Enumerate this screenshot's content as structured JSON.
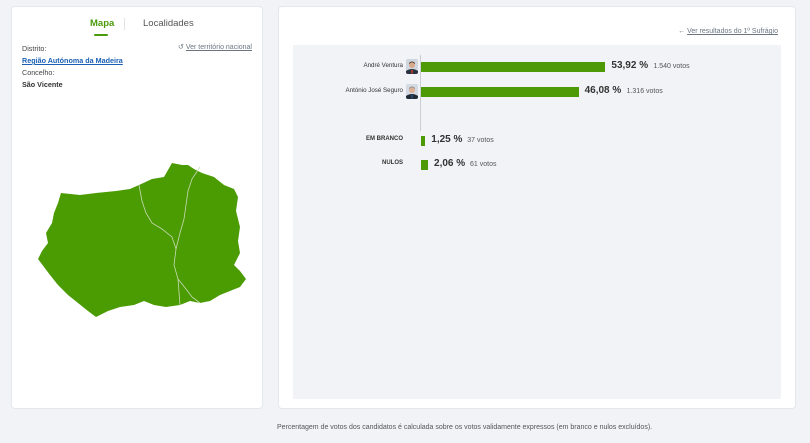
{
  "tabs": {
    "map": "Mapa",
    "localities": "Localidades"
  },
  "location": {
    "district_label": "Distrito:",
    "district_value": "Região Autónoma da Madeira",
    "council_label": "Concelho:",
    "council_value": "São Vicente",
    "national_link": "Ver território nacional"
  },
  "results": {
    "previous_link": "Ver resultados do 1º Sufrágio",
    "candidates": [
      {
        "name": "André Ventura",
        "percent": 53.92,
        "percent_label": "53,92 %",
        "votes_label": "1.540 votos"
      },
      {
        "name": "António José Seguro",
        "percent": 46.08,
        "percent_label": "46,08 %",
        "votes_label": "1.316 votos"
      }
    ],
    "others": [
      {
        "name": "EM BRANCO",
        "percent": 1.25,
        "percent_label": "1,25 %",
        "votes_label": "37 votos"
      },
      {
        "name": "NULOS",
        "percent": 2.06,
        "percent_label": "2,06 %",
        "votes_label": "61 votos"
      }
    ]
  },
  "footnote": "Percentagem de votos dos candidatos é calculada sobre os votos validamente expressos (em branco e nulos excluídos).",
  "colors": {
    "accent": "#4a9a0a",
    "bar": "#4d9a06",
    "map_fill": "#4b9b03"
  }
}
